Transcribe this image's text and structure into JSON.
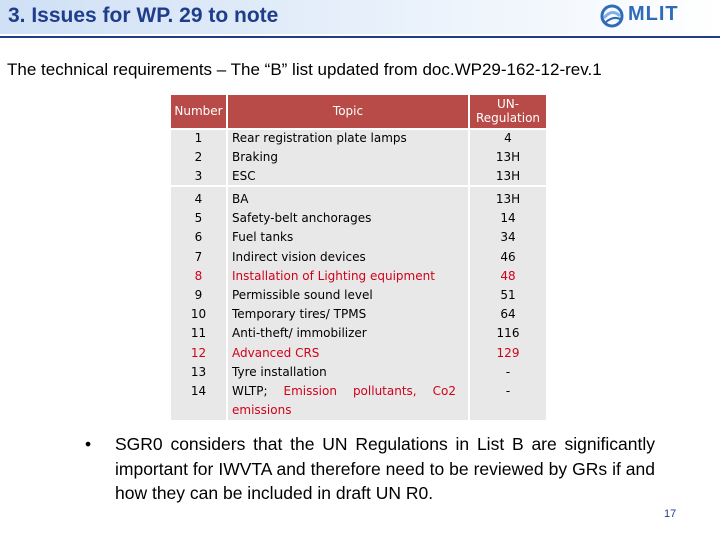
{
  "header": {
    "title": "3. Issues for WP. 29 to note",
    "logo_text": "MLIT"
  },
  "subtitle": "The technical requirements – The “B” list updated from doc.WP29-162-12-rev.1",
  "table": {
    "headers": {
      "number": "Number",
      "topic": "Topic",
      "regulation": "UN-Regulation"
    },
    "group1": [
      {
        "n": "1",
        "topic": "Rear registration plate lamps",
        "reg": "4"
      },
      {
        "n": "2",
        "topic": "Braking",
        "reg": "13H"
      },
      {
        "n": "3",
        "topic": "ESC",
        "reg": "13H"
      }
    ],
    "group2": [
      {
        "n": "4",
        "topic": "BA",
        "reg": "13H"
      },
      {
        "n": "5",
        "topic": "Safety-belt anchorages",
        "reg": "14"
      },
      {
        "n": "6",
        "topic": "Fuel tanks",
        "reg": "34"
      },
      {
        "n": "7",
        "topic": "Indirect vision devices",
        "reg": "46"
      },
      {
        "n": "8",
        "topic": "Installation of Lighting equipment",
        "reg": "48"
      },
      {
        "n": "9",
        "topic": "Permissible sound level",
        "reg": "51"
      },
      {
        "n": "10",
        "topic": "Temporary tires/ TPMS",
        "reg": "64"
      },
      {
        "n": "11",
        "topic": "Anti-theft/ immobilizer",
        "reg": "116"
      },
      {
        "n": "12",
        "topic": "Advanced CRS",
        "reg": "129"
      },
      {
        "n": "13",
        "topic": "Tyre installation",
        "reg": "-"
      },
      {
        "n": "14",
        "topic_prefix": "WLTP;",
        "topic_red1": "Emission",
        "topic_red2": "pollutants,",
        "topic_red3": "Co2",
        "topic_red4": "emissions",
        "reg": "-"
      }
    ],
    "highlight_color": "#d0021b"
  },
  "bullet": {
    "symbol": "•",
    "text": "SGR0 considers that the UN Regulations in List B are significantly important for IWVTA and therefore need to be reviewed by GRs if and how they can be included in draft UN R0."
  },
  "page_number": "17"
}
